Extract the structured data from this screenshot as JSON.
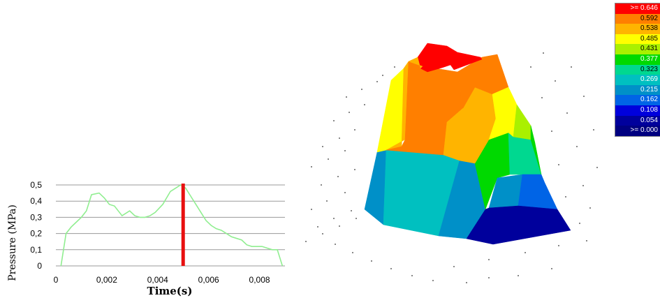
{
  "chart_data": [
    {
      "type": "line",
      "title": "",
      "xlabel": "Time(s)",
      "ylabel": "Pressure (MPa)",
      "xlim": [
        0,
        0.009
      ],
      "ylim": [
        0,
        0.5
      ],
      "x_tick_labels": [
        "0",
        "0,002",
        "0,004",
        "0,006",
        "0,008"
      ],
      "x_ticks": [
        0,
        0.002,
        0.004,
        0.006,
        0.008
      ],
      "y_tick_labels": [
        "0",
        "0,1",
        "0,2",
        "0,3",
        "0,4",
        "0,5"
      ],
      "y_ticks": [
        0,
        0.1,
        0.2,
        0.3,
        0.4,
        0.5
      ],
      "grid": "horizontal",
      "line_color": "#90ee90",
      "marker_color": "#e81010",
      "marker_x": 0.005,
      "series": [
        {
          "x": [
            0.0002,
            0.0004,
            0.0006,
            0.0008,
            0.001,
            0.0012,
            0.0014,
            0.0017,
            0.0019,
            0.0021,
            0.0023,
            0.0025,
            0.0026,
            0.0028,
            0.0029,
            0.0031,
            0.0033,
            0.0035,
            0.0037,
            0.0039,
            0.0042,
            0.0045,
            0.0047,
            0.0049,
            0.0051,
            0.0053,
            0.0055,
            0.0057,
            0.0059,
            0.0061,
            0.0063,
            0.0065,
            0.0067,
            0.0069,
            0.0071,
            0.0073,
            0.0075,
            0.0077,
            0.0079,
            0.0081,
            0.0083,
            0.0085,
            0.0087,
            0.0089
          ],
          "y": [
            0,
            0.2,
            0.24,
            0.27,
            0.3,
            0.34,
            0.44,
            0.45,
            0.42,
            0.38,
            0.37,
            0.33,
            0.31,
            0.33,
            0.34,
            0.31,
            0.3,
            0.3,
            0.31,
            0.33,
            0.38,
            0.46,
            0.48,
            0.5,
            0.48,
            0.43,
            0.38,
            0.33,
            0.28,
            0.25,
            0.23,
            0.22,
            0.2,
            0.18,
            0.17,
            0.16,
            0.13,
            0.12,
            0.12,
            0.12,
            0.11,
            0.1,
            0.1,
            0
          ]
        }
      ]
    },
    {
      "type": "heatmap",
      "title": "",
      "legend_placement": "top-right",
      "legend": [
        {
          "label": ">= 0.646",
          "color": "#ff0000"
        },
        {
          "label": "0.592",
          "color": "#ff7f00"
        },
        {
          "label": "0.538",
          "color": "#ffb400"
        },
        {
          "label": "0.485",
          "color": "#ffff00"
        },
        {
          "label": "0.431",
          "color": "#aaf000"
        },
        {
          "label": "0.377",
          "color": "#00d900"
        },
        {
          "label": "0.323",
          "color": "#00d890"
        },
        {
          "label": "0.269",
          "color": "#00c0c0"
        },
        {
          "label": "0.215",
          "color": "#0090c8"
        },
        {
          "label": "0.162",
          "color": "#0064e6"
        },
        {
          "label": "0.108",
          "color": "#0000dc"
        },
        {
          "label": "0.054",
          "color": "#00009c"
        },
        {
          "label": ">= 0.000",
          "color": "#000080"
        }
      ]
    }
  ]
}
